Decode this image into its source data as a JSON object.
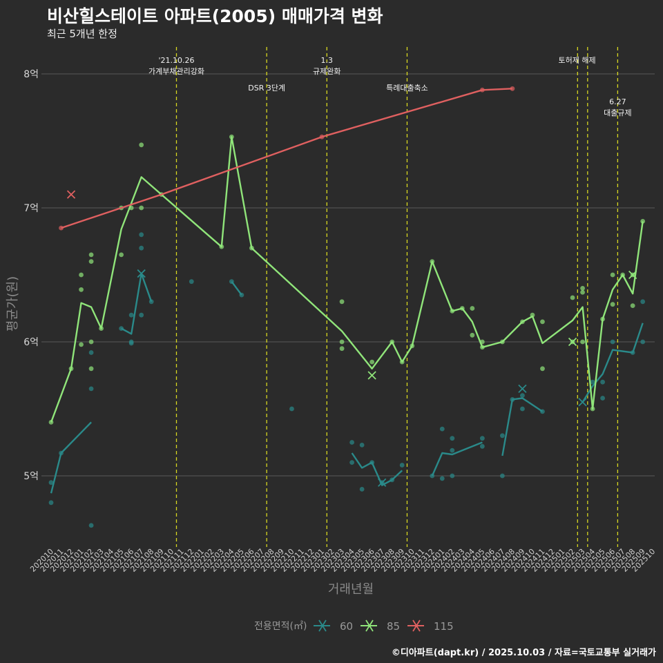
{
  "header": {
    "title": "비산힐스테이트 아파트(2005) 매매가격 변화",
    "subtitle": "최근 5개년 한정"
  },
  "footer": {
    "credit": "©디아파트(dapt.kr) / 2025.10.03 / 자료=국토교통부 실거래가"
  },
  "chart_data": {
    "type": "line",
    "title": "비산힐스테이트 아파트(2005) 매매가격 변화",
    "subtitle": "최근 5개년 한정",
    "xlabel": "거래년월",
    "ylabel": "평균가(원)",
    "ylim": [
      4.48,
      8.2
    ],
    "y_ticks": [
      5,
      6,
      7,
      8
    ],
    "y_tick_labels": [
      "5억",
      "6억",
      "7억",
      "8억"
    ],
    "x_ticks": [
      "202010",
      "202011",
      "202012",
      "202101",
      "202102",
      "202103",
      "202104",
      "202105",
      "202106",
      "202107",
      "202108",
      "202109",
      "202110",
      "202111",
      "202112",
      "202201",
      "202202",
      "202203",
      "202204",
      "202205",
      "202206",
      "202207",
      "202208",
      "202209",
      "202210",
      "202211",
      "202212",
      "202301",
      "202302",
      "202303",
      "202304",
      "202305",
      "202306",
      "202307",
      "202308",
      "202309",
      "202310",
      "202311",
      "202312",
      "202401",
      "202402",
      "202403",
      "202404",
      "202405",
      "202406",
      "202407",
      "202408",
      "202409",
      "202410",
      "202411",
      "202412",
      "202501",
      "202502",
      "202503",
      "202504",
      "202505",
      "202506",
      "202507",
      "202508",
      "202509",
      "202510"
    ],
    "legend": {
      "title": "전용면적(㎡)",
      "position": "bottom"
    },
    "series": [
      {
        "name": "60",
        "color": "#2a8a8a",
        "lines": [
          [
            [
              0,
              4.87
            ],
            [
              1,
              5.17
            ],
            [
              4,
              5.4
            ]
          ],
          [
            [
              7,
              6.1
            ],
            [
              8,
              6.06
            ],
            [
              9,
              6.51
            ],
            [
              10,
              6.3
            ]
          ],
          [
            [
              18,
              6.45
            ],
            [
              19,
              6.35
            ]
          ],
          [
            [
              30,
              5.17
            ],
            [
              31,
              5.06
            ],
            [
              32,
              5.1
            ],
            [
              33,
              4.93
            ],
            [
              34,
              4.97
            ],
            [
              35,
              5.04
            ]
          ],
          [
            [
              38,
              5.0
            ],
            [
              39,
              5.17
            ],
            [
              40,
              5.16
            ],
            [
              43,
              5.25
            ]
          ],
          [
            [
              45,
              5.15
            ],
            [
              46,
              5.57
            ],
            [
              47,
              5.58
            ],
            [
              49,
              5.48
            ]
          ],
          [
            [
              53,
              5.55
            ],
            [
              54,
              5.67
            ],
            [
              55,
              5.76
            ],
            [
              56,
              5.94
            ],
            [
              58,
              5.92
            ],
            [
              59,
              6.14
            ]
          ]
        ],
        "points": [
          [
            0,
            4.95
          ],
          [
            0,
            4.8
          ],
          [
            1,
            5.17
          ],
          [
            4,
            5.92
          ],
          [
            4,
            5.65
          ],
          [
            4,
            4.63
          ],
          [
            7,
            6.1
          ],
          [
            8,
            6.2
          ],
          [
            8,
            6.0
          ],
          [
            8,
            5.99
          ],
          [
            9,
            6.8
          ],
          [
            9,
            6.7
          ],
          [
            9,
            6.2
          ],
          [
            10,
            6.3
          ],
          [
            14,
            6.45
          ],
          [
            18,
            6.45
          ],
          [
            19,
            6.35
          ],
          [
            24,
            5.5
          ],
          [
            30,
            5.25
          ],
          [
            30,
            5.1
          ],
          [
            31,
            5.23
          ],
          [
            31,
            4.9
          ],
          [
            32,
            5.1
          ],
          [
            33,
            4.95
          ],
          [
            34,
            4.97
          ],
          [
            35,
            5.08
          ],
          [
            38,
            5.0
          ],
          [
            39,
            5.35
          ],
          [
            39,
            4.98
          ],
          [
            40,
            5.28
          ],
          [
            40,
            5.19
          ],
          [
            40,
            5.0
          ],
          [
            43,
            5.28
          ],
          [
            43,
            5.22
          ],
          [
            45,
            5.3
          ],
          [
            45,
            5.0
          ],
          [
            46,
            5.57
          ],
          [
            47,
            5.6
          ],
          [
            47,
            5.5
          ],
          [
            49,
            5.48
          ],
          [
            54,
            5.7
          ],
          [
            55,
            5.7
          ],
          [
            55,
            5.58
          ],
          [
            56,
            6.0
          ],
          [
            58,
            5.92
          ],
          [
            59,
            6.3
          ],
          [
            59,
            6.0
          ]
        ],
        "markers_x": [
          [
            9,
            6.51
          ],
          [
            33,
            4.95
          ],
          [
            47,
            5.65
          ],
          [
            53,
            5.55
          ]
        ]
      },
      {
        "name": "85",
        "color": "#90e57a",
        "lines": [
          [
            [
              0,
              5.4
            ],
            [
              2,
              5.8
            ],
            [
              3,
              6.29
            ],
            [
              4,
              6.26
            ],
            [
              5,
              6.1
            ],
            [
              7,
              6.84
            ],
            [
              9,
              7.23
            ],
            [
              11,
              7.1
            ],
            [
              17,
              6.71
            ],
            [
              18,
              7.53
            ],
            [
              20,
              6.7
            ],
            [
              29,
              6.08
            ],
            [
              32,
              5.8
            ],
            [
              34,
              6.0
            ],
            [
              35,
              5.85
            ],
            [
              36,
              5.97
            ],
            [
              38,
              6.6
            ],
            [
              40,
              6.23
            ],
            [
              41,
              6.25
            ],
            [
              42,
              6.15
            ],
            [
              43,
              5.96
            ],
            [
              45,
              6.0
            ],
            [
              47,
              6.15
            ],
            [
              48,
              6.19
            ],
            [
              49,
              5.99
            ],
            [
              52,
              6.16
            ],
            [
              53,
              6.26
            ],
            [
              54,
              5.5
            ],
            [
              55,
              6.17
            ],
            [
              56,
              6.39
            ],
            [
              57,
              6.5
            ],
            [
              58,
              6.36
            ],
            [
              59,
              6.9
            ]
          ]
        ],
        "points": [
          [
            0,
            5.4
          ],
          [
            2,
            5.8
          ],
          [
            3,
            6.5
          ],
          [
            3,
            6.39
          ],
          [
            3,
            5.98
          ],
          [
            4,
            6.65
          ],
          [
            4,
            6.6
          ],
          [
            4,
            6.0
          ],
          [
            4,
            5.8
          ],
          [
            5,
            6.1
          ],
          [
            7,
            7.0
          ],
          [
            7,
            6.65
          ],
          [
            8,
            7.0
          ],
          [
            9,
            7.47
          ],
          [
            9,
            7.0
          ],
          [
            11,
            7.1
          ],
          [
            17,
            6.71
          ],
          [
            18,
            7.53
          ],
          [
            20,
            6.7
          ],
          [
            29,
            6.3
          ],
          [
            29,
            6.0
          ],
          [
            29,
            5.95
          ],
          [
            32,
            5.85
          ],
          [
            34,
            6.0
          ],
          [
            35,
            5.85
          ],
          [
            36,
            5.97
          ],
          [
            38,
            6.6
          ],
          [
            40,
            6.23
          ],
          [
            41,
            6.25
          ],
          [
            42,
            6.25
          ],
          [
            42,
            6.05
          ],
          [
            43,
            6.0
          ],
          [
            43,
            5.96
          ],
          [
            45,
            6.0
          ],
          [
            47,
            6.15
          ],
          [
            48,
            6.2
          ],
          [
            49,
            6.15
          ],
          [
            49,
            5.8
          ],
          [
            52,
            6.33
          ],
          [
            52,
            6.0
          ],
          [
            53,
            6.4
          ],
          [
            53,
            6.37
          ],
          [
            53,
            6.0
          ],
          [
            54,
            5.5
          ],
          [
            55,
            6.17
          ],
          [
            56,
            6.5
          ],
          [
            56,
            6.28
          ],
          [
            57,
            6.5
          ],
          [
            58,
            6.5
          ],
          [
            58,
            6.27
          ],
          [
            59,
            6.9
          ]
        ],
        "markers_x": [
          [
            32,
            5.75
          ],
          [
            52,
            6.0
          ],
          [
            58,
            6.5
          ]
        ]
      },
      {
        "name": "115",
        "color": "#e06060",
        "lines": [
          [
            [
              1,
              6.85
            ],
            [
              11,
              7.1
            ],
            [
              27,
              7.53
            ],
            [
              43,
              7.88
            ],
            [
              46,
              7.89
            ]
          ]
        ],
        "points": [
          [
            1,
            6.85
          ],
          [
            27,
            7.53
          ],
          [
            43,
            7.88
          ],
          [
            46,
            7.89
          ]
        ],
        "markers_x": [
          [
            2,
            7.1
          ]
        ]
      }
    ],
    "events": [
      {
        "x": 12.5,
        "lines": [
          "'21.10.26",
          "가계부채관리강화"
        ],
        "row": 0
      },
      {
        "x": 21.5,
        "lines": [
          "DSR 3단계"
        ],
        "row": 1
      },
      {
        "x": 27.5,
        "lines": [
          "1.3",
          "규제완화"
        ],
        "row": 0
      },
      {
        "x": 35.5,
        "lines": [
          "특례대출축소"
        ],
        "row": 1
      },
      {
        "x": 52.5,
        "lines": [
          "토허제 해제"
        ],
        "row": 0,
        "dashed_pair": 53.5
      },
      {
        "x": 56.5,
        "lines": [
          "6.27",
          "대출규제"
        ],
        "row": 2
      }
    ]
  }
}
